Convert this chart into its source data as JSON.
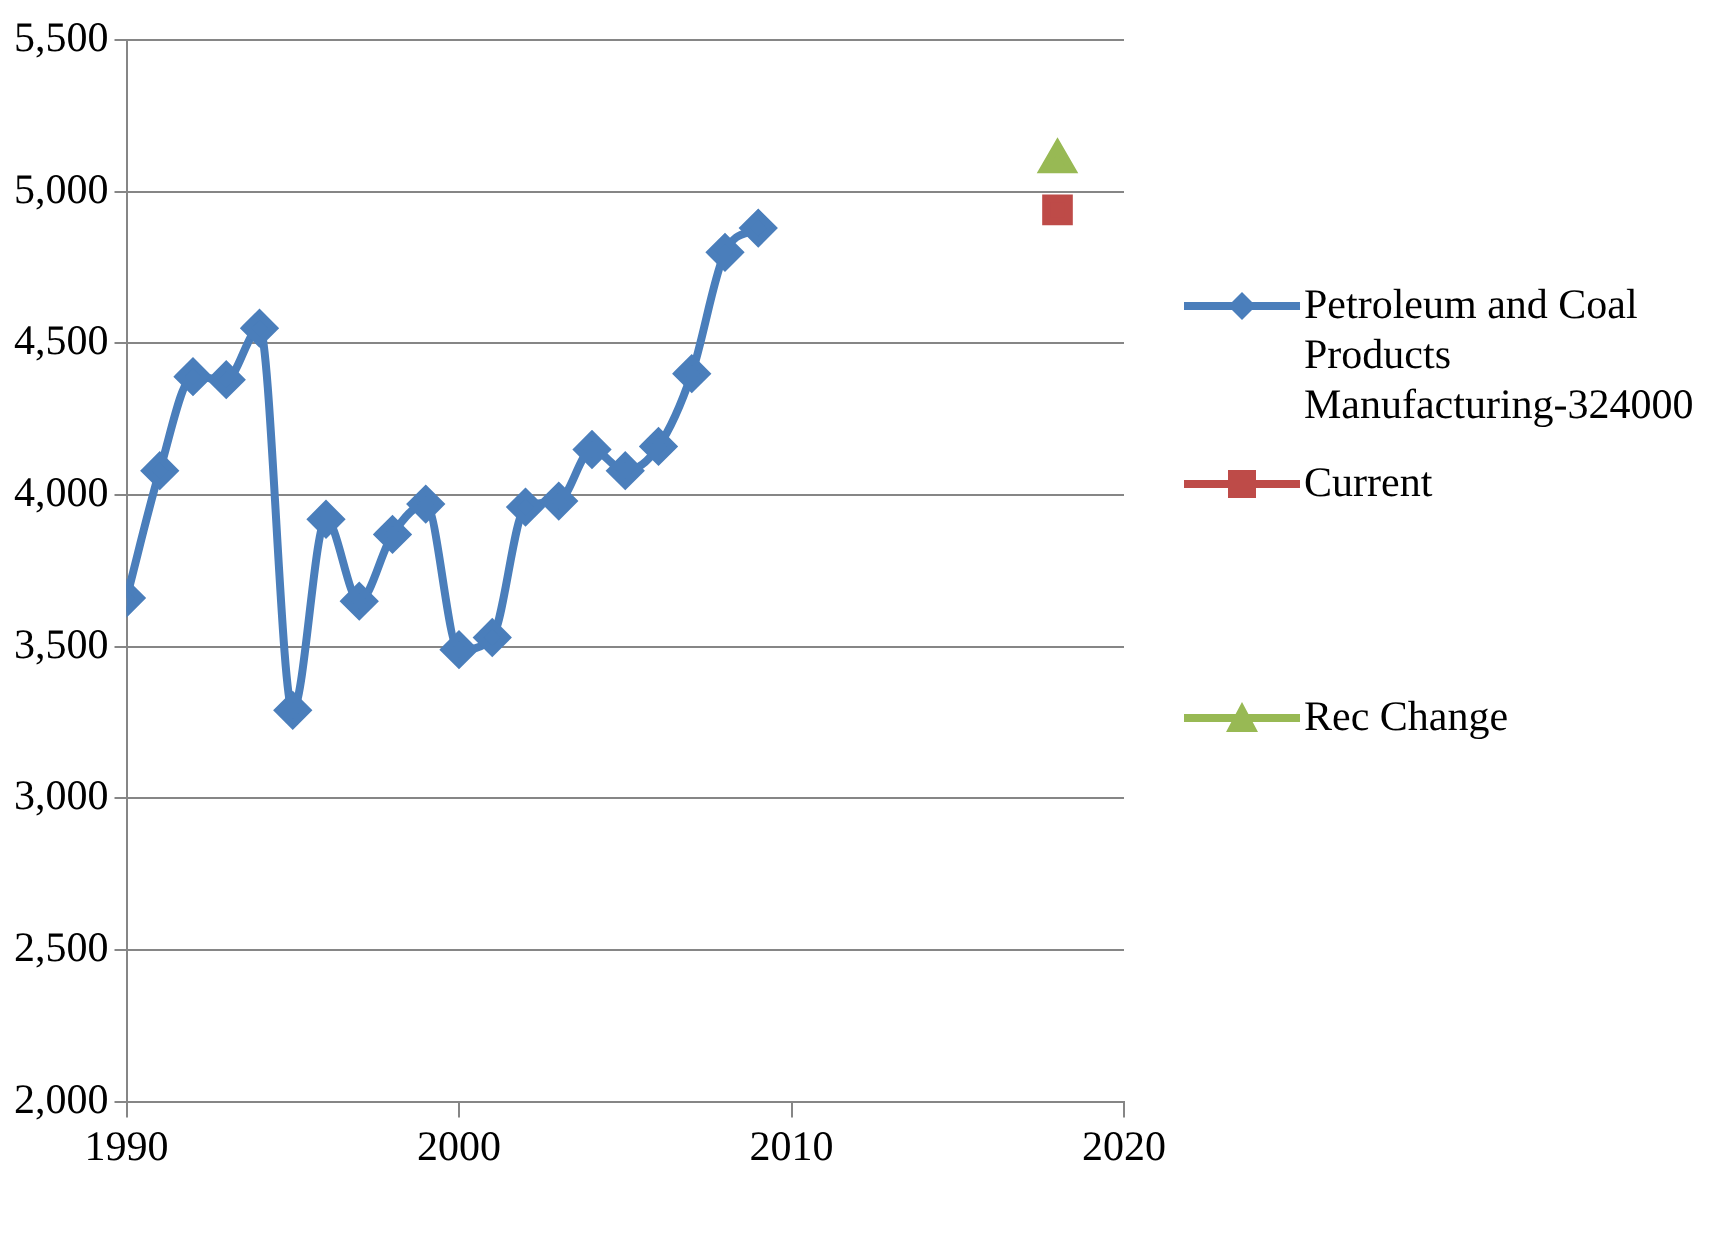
{
  "chart_data": {
    "type": "line",
    "xlim": [
      1990,
      2020
    ],
    "xticks": [
      1990,
      2000,
      2010,
      2020
    ],
    "ylim": [
      2000,
      5500
    ],
    "yticks": [
      {
        "value": 2000,
        "label": "2,000"
      },
      {
        "value": 2500,
        "label": "2,500"
      },
      {
        "value": 3000,
        "label": "3,000"
      },
      {
        "value": 3500,
        "label": "3,500"
      },
      {
        "value": 4000,
        "label": "4,000"
      },
      {
        "value": 4500,
        "label": "4,500"
      },
      {
        "value": 5000,
        "label": "5,000"
      },
      {
        "value": 5500,
        "label": "5,500"
      }
    ],
    "grid": "y",
    "legend": "right",
    "series": [
      {
        "name": "Petroleum and Coal Products Manufacturing-324000",
        "color": "#4a7ebb",
        "marker": "diamond",
        "x": [
          1990,
          1991,
          1992,
          1993,
          1994,
          1995,
          1996,
          1997,
          1998,
          1999,
          2000,
          2001,
          2002,
          2003,
          2004,
          2005,
          2006,
          2007,
          2008,
          2009
        ],
        "values": [
          3660,
          4080,
          4390,
          4380,
          4550,
          3290,
          3920,
          3650,
          3870,
          3970,
          3490,
          3530,
          3960,
          3980,
          4150,
          4080,
          4160,
          4400,
          4800,
          4880
        ]
      },
      {
        "name": "Current",
        "type": "scatter",
        "color": "#be4b48",
        "marker": "square",
        "x": [
          2018
        ],
        "values": [
          4940
        ]
      },
      {
        "name": "Rec Change",
        "type": "scatter",
        "color": "#98b954",
        "marker": "triangle",
        "x": [
          2018
        ],
        "values": [
          5100
        ]
      }
    ]
  }
}
